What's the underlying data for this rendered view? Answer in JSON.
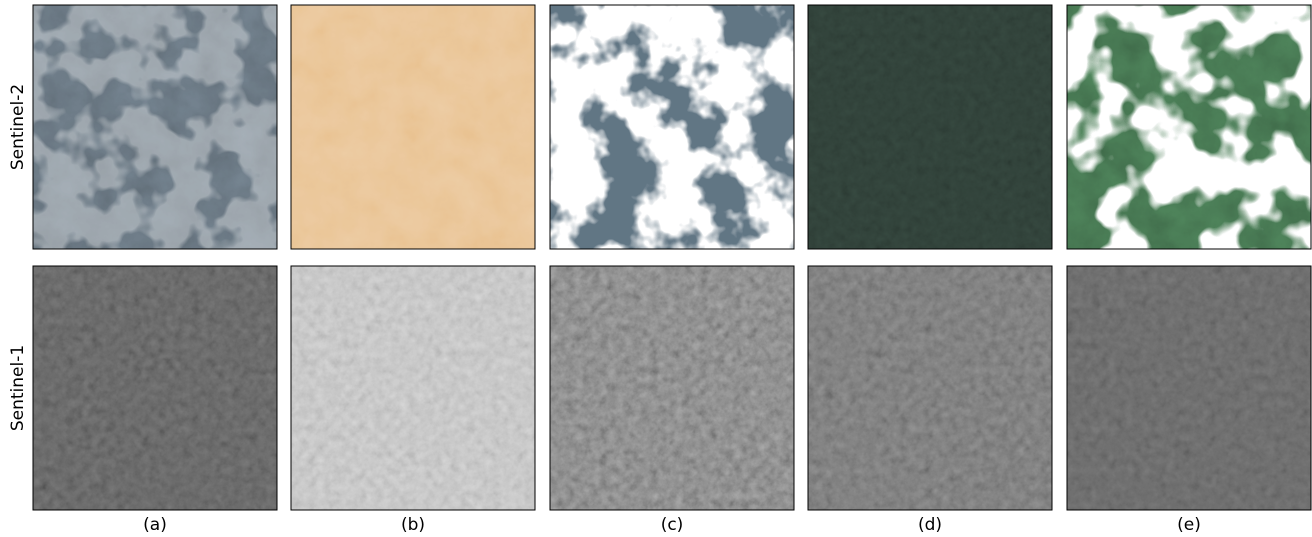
{
  "row_labels": [
    "Sentinel-2",
    "Sentinel-1"
  ],
  "column_labels": [
    "(a)",
    "(b)",
    "(c)",
    "(d)",
    "(e)"
  ]
}
